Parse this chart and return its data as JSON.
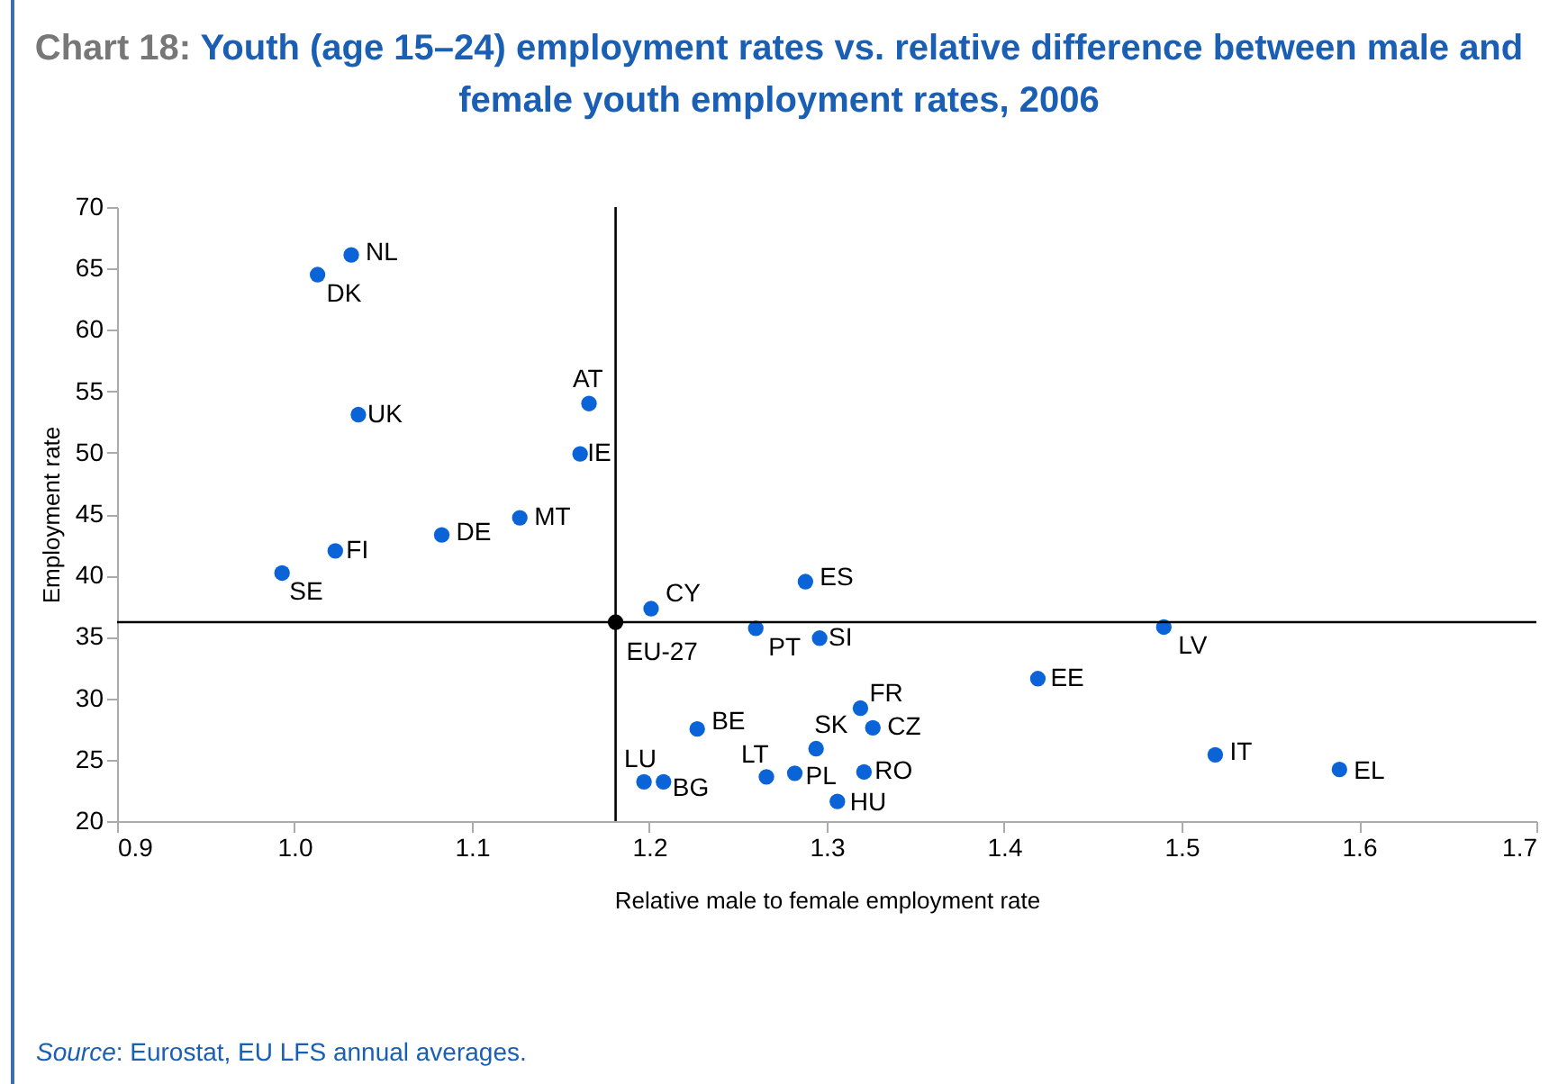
{
  "chart_data": {
    "type": "scatter",
    "title": "Chart 18: Youth (age 15–24) employment rates vs. relative difference between male and female youth employment rates, 2006",
    "xlabel": "Relative male to female employment rate",
    "ylabel": "Employment rate",
    "xlim": [
      0.9,
      1.7
    ],
    "xticks": [
      {
        "value": 0.9,
        "label": "0.9"
      },
      {
        "value": 1.0,
        "label": "1.0"
      },
      {
        "value": 1.1,
        "label": "1.1"
      },
      {
        "value": 1.2,
        "label": "1.2"
      },
      {
        "value": 1.3,
        "label": "1.3"
      },
      {
        "value": 1.4,
        "label": "1.4"
      },
      {
        "value": 1.5,
        "label": "1.5"
      },
      {
        "value": 1.6,
        "label": "1.6"
      },
      {
        "value": 1.7,
        "label": "1.7"
      }
    ],
    "ylim": [
      20,
      70
    ],
    "yticks": [
      20,
      25,
      30,
      35,
      40,
      45,
      50,
      55,
      60,
      65,
      70
    ],
    "grid": false,
    "marker": "circle",
    "series": [
      {
        "color": "#0a64d8",
        "x": [
          1.032,
          1.013,
          1.036,
          1.166,
          1.161,
          1.127,
          1.083,
          1.023,
          0.993,
          1.201,
          1.288,
          1.26,
          1.296,
          1.49,
          1.419,
          1.319,
          1.227,
          1.326,
          1.294,
          1.519,
          1.197,
          1.208,
          1.266,
          1.282,
          1.321,
          1.589,
          1.306
        ],
        "values": [
          66.1,
          64.5,
          53.1,
          54.0,
          49.9,
          44.7,
          43.3,
          42.0,
          40.2,
          37.3,
          39.5,
          35.7,
          34.9,
          35.8,
          31.6,
          29.2,
          27.5,
          27.6,
          25.9,
          25.4,
          23.2,
          23.2,
          23.6,
          23.9,
          24.0,
          24.2,
          21.6
        ]
      },
      {
        "color": "#000000",
        "x": [
          1.181
        ],
        "values": [
          36.2
        ]
      }
    ],
    "ref_lines": [
      {
        "axis": "x",
        "value": 1.181,
        "color": "#000000"
      },
      {
        "axis": "y",
        "value": 36.2,
        "color": "#000000"
      }
    ],
    "annotations": [
      {
        "text": "NL",
        "x": 1.032,
        "y": 66.1
      },
      {
        "text": "DK",
        "x": 1.013,
        "y": 64.5
      },
      {
        "text": "UK",
        "x": 1.036,
        "y": 53.1
      },
      {
        "text": "AT",
        "x": 1.166,
        "y": 54.0
      },
      {
        "text": "IE",
        "x": 1.161,
        "y": 49.9
      },
      {
        "text": "MT",
        "x": 1.127,
        "y": 44.7
      },
      {
        "text": "DE",
        "x": 1.083,
        "y": 43.3
      },
      {
        "text": "FI",
        "x": 1.023,
        "y": 42.0
      },
      {
        "text": "SE",
        "x": 0.993,
        "y": 40.2
      },
      {
        "text": "CY",
        "x": 1.201,
        "y": 37.3
      },
      {
        "text": "EU-27",
        "x": 1.181,
        "y": 36.2
      },
      {
        "text": "ES",
        "x": 1.288,
        "y": 39.5
      },
      {
        "text": "PT",
        "x": 1.26,
        "y": 35.7
      },
      {
        "text": "SI",
        "x": 1.296,
        "y": 34.9
      },
      {
        "text": "LV",
        "x": 1.49,
        "y": 35.8
      },
      {
        "text": "EE",
        "x": 1.419,
        "y": 31.6
      },
      {
        "text": "FR",
        "x": 1.319,
        "y": 29.2
      },
      {
        "text": "BE",
        "x": 1.227,
        "y": 27.5
      },
      {
        "text": "CZ",
        "x": 1.326,
        "y": 27.6
      },
      {
        "text": "SK",
        "x": 1.294,
        "y": 25.9
      },
      {
        "text": "IT",
        "x": 1.519,
        "y": 25.4
      },
      {
        "text": "LU",
        "x": 1.197,
        "y": 23.2
      },
      {
        "text": "BG",
        "x": 1.208,
        "y": 23.2
      },
      {
        "text": "LT",
        "x": 1.266,
        "y": 23.6
      },
      {
        "text": "PL",
        "x": 1.282,
        "y": 23.9
      },
      {
        "text": "RO",
        "x": 1.321,
        "y": 24.0
      },
      {
        "text": "EL",
        "x": 1.589,
        "y": 24.2
      },
      {
        "text": "HU",
        "x": 1.306,
        "y": 21.6
      },
      "Source: Eurostat, EU LFS annual averages."
    ]
  }
}
